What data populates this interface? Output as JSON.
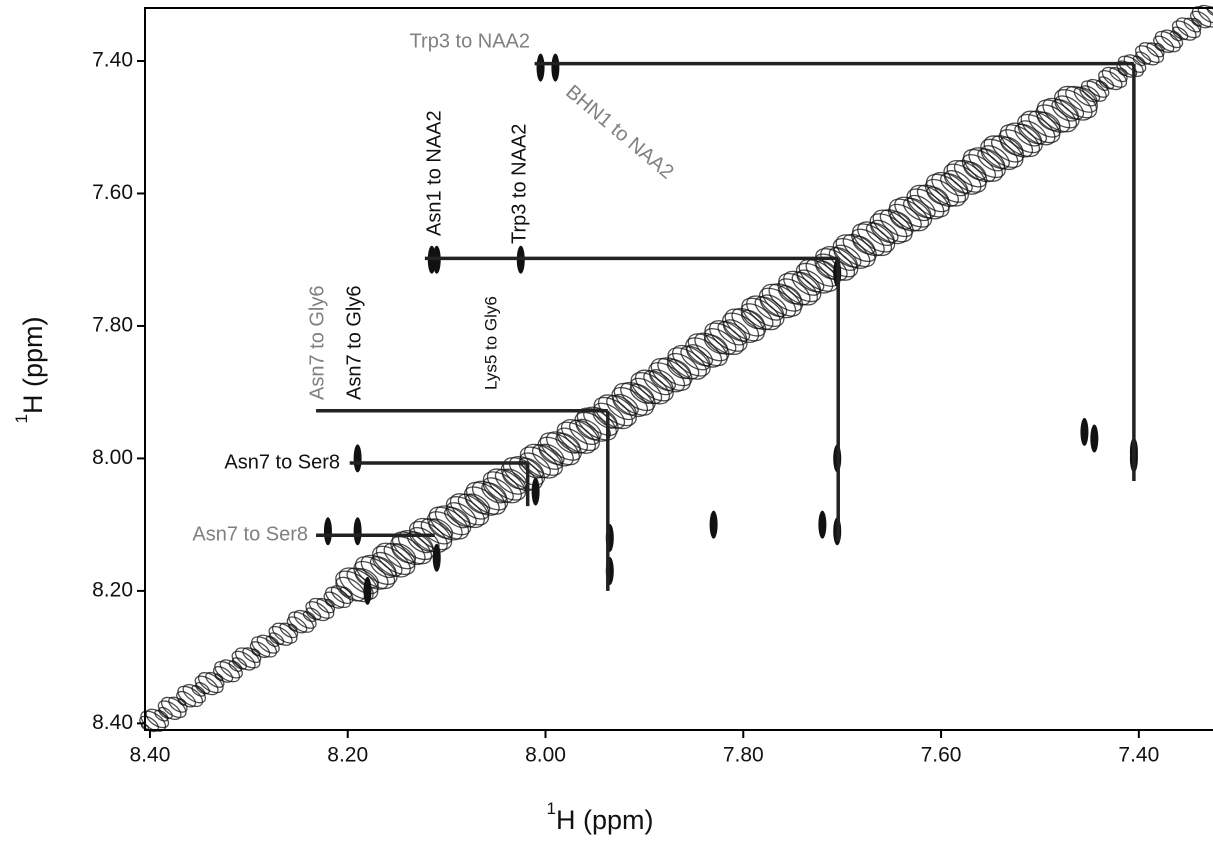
{
  "chart_data": {
    "type": "nmr",
    "x_label": "H (ppm)",
    "x_label_superscript": "1",
    "y_label": "H (ppm)",
    "y_label_superscript": "1",
    "xlim": [
      8.405,
      7.325
    ],
    "ylim": [
      7.32,
      8.41
    ],
    "xticks": [
      {
        "value": 8.4,
        "label": "8.40"
      },
      {
        "value": 8.2,
        "label": "8.20"
      },
      {
        "value": 8.0,
        "label": "8.00"
      },
      {
        "value": 7.8,
        "label": "7.80"
      },
      {
        "value": 7.6,
        "label": "7.60"
      },
      {
        "value": 7.4,
        "label": "7.40"
      }
    ],
    "yticks": [
      {
        "value": 7.4,
        "label": "7.40"
      },
      {
        "value": 7.6,
        "label": "7.60"
      },
      {
        "value": 7.8,
        "label": "7.80"
      },
      {
        "value": 8.0,
        "label": "8.00"
      },
      {
        "value": 8.2,
        "label": "8.20"
      },
      {
        "value": 8.4,
        "label": "8.40"
      }
    ],
    "contour_color": "#111111",
    "peaks": {
      "x": [
        8.005,
        7.99,
        7.405,
        7.405,
        7.705,
        7.705,
        8.115,
        8.11,
        8.025,
        7.83,
        7.72,
        7.935,
        8.18,
        8.19,
        8.22,
        8.19,
        8.01,
        8.11,
        7.935,
        7.445,
        7.455,
        7.705
      ],
      "y": [
        7.41,
        7.41,
        8.0,
        7.99,
        8.0,
        8.11,
        7.7,
        7.7,
        7.7,
        8.1,
        8.1,
        8.17,
        8.2,
        8.0,
        8.11,
        8.11,
        8.05,
        8.15,
        8.12,
        7.97,
        7.96,
        7.72
      ]
    },
    "lines": [
      {
        "x": [
          8.011,
          7.405
        ],
        "y": [
          7.404,
          7.404
        ]
      },
      {
        "x": [
          7.405,
          7.405
        ],
        "y": [
          7.404,
          8.034
        ]
      },
      {
        "x": [
          8.122,
          7.704
        ],
        "y": [
          7.698,
          7.698
        ]
      },
      {
        "x": [
          7.704,
          7.704
        ],
        "y": [
          7.698,
          8.125
        ]
      },
      {
        "x": [
          8.232,
          7.937
        ],
        "y": [
          7.928,
          7.928
        ]
      },
      {
        "x": [
          7.937,
          7.937
        ],
        "y": [
          7.928,
          8.2
        ]
      },
      {
        "x": [
          8.198,
          8.018
        ],
        "y": [
          8.007,
          8.007
        ]
      },
      {
        "x": [
          8.018,
          8.018
        ],
        "y": [
          8.007,
          8.072
        ]
      },
      {
        "x": [
          8.232,
          8.112
        ],
        "y": [
          8.116,
          8.116
        ]
      }
    ],
    "annotations": [
      {
        "text": "Trp3 to NAA2",
        "color": "#808080"
      },
      {
        "text": "BHN1 to NAA2",
        "color": "#808080"
      },
      {
        "text": "Asn1 to NAA2",
        "color": "#111111"
      },
      {
        "text": "Trp3 to NAA2",
        "color": "#111111"
      },
      {
        "text": "Lys5 to Gly6",
        "color": "#111111"
      },
      {
        "text": "Asn7 to Gly6",
        "color": "#808080"
      },
      {
        "text": "Asn7 to Gly6",
        "color": "#111111"
      },
      {
        "text": "Asn7 to Ser8",
        "color": "#111111"
      },
      {
        "text": "Asn7 to Ser8",
        "color": "#808080"
      }
    ]
  }
}
